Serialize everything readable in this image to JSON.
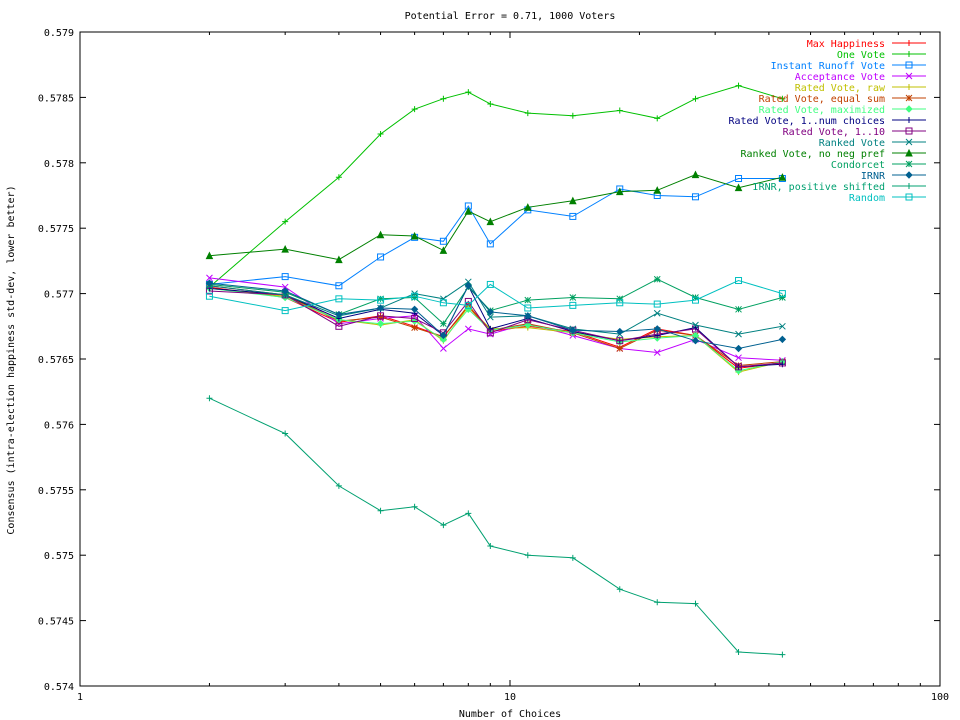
{
  "chart_data": {
    "type": "line",
    "title": "Potential Error = 0.71, 1000 Voters",
    "xlabel": "Number of Choices",
    "ylabel": "Consensus (intra-election happiness std-dev, lower better)",
    "x_scale": "log",
    "xlim": [
      1,
      100
    ],
    "ylim": [
      0.574,
      0.579
    ],
    "x_ticks": [
      {
        "value": 1,
        "label": "1"
      },
      {
        "value": 10,
        "label": "10"
      },
      {
        "value": 100,
        "label": "100"
      }
    ],
    "y_ticks": [
      {
        "value": 0.574,
        "label": "0.574"
      },
      {
        "value": 0.5745,
        "label": "0.5745"
      },
      {
        "value": 0.575,
        "label": "0.575"
      },
      {
        "value": 0.5755,
        "label": "0.5755"
      },
      {
        "value": 0.576,
        "label": "0.576"
      },
      {
        "value": 0.5765,
        "label": "0.5765"
      },
      {
        "value": 0.577,
        "label": "0.577"
      },
      {
        "value": 0.5775,
        "label": "0.5775"
      },
      {
        "value": 0.578,
        "label": "0.578"
      },
      {
        "value": 0.5785,
        "label": "0.5785"
      },
      {
        "value": 0.579,
        "label": "0.579"
      }
    ],
    "grid": false,
    "legend_position": "top-right",
    "x": [
      2,
      3,
      4,
      5,
      6,
      7,
      8,
      9,
      11,
      14,
      18,
      22,
      27,
      34,
      43
    ],
    "series": [
      {
        "name": "Max Happiness",
        "color": "#ff0000",
        "marker": "plus",
        "values": [
          0.57705,
          0.57697,
          0.57678,
          0.57683,
          0.57675,
          0.57667,
          0.5769,
          0.57671,
          0.57675,
          0.57671,
          0.57659,
          0.57673,
          0.57668,
          0.57643,
          0.57647
        ]
      },
      {
        "name": "One Vote",
        "color": "#00c000",
        "marker": "plus",
        "values": [
          0.57705,
          0.57755,
          0.57789,
          0.57822,
          0.57841,
          0.57849,
          0.57854,
          0.57845,
          0.57838,
          0.57836,
          0.5784,
          0.57834,
          0.57849,
          0.57859,
          0.57849
        ]
      },
      {
        "name": "Instant Runoff Vote",
        "color": "#0080ff",
        "marker": "square",
        "values": [
          0.57707,
          0.57713,
          0.57706,
          0.57728,
          0.57743,
          0.5774,
          0.57767,
          0.57738,
          0.57764,
          0.57759,
          0.5778,
          0.57775,
          0.57774,
          0.57788,
          0.57788
        ]
      },
      {
        "name": "Acceptance Vote",
        "color": "#c000ff",
        "marker": "x",
        "values": [
          0.57712,
          0.57705,
          0.57677,
          0.57681,
          0.57683,
          0.57658,
          0.57673,
          0.57669,
          0.57677,
          0.57668,
          0.57658,
          0.57655,
          0.57665,
          0.57651,
          0.57649
        ]
      },
      {
        "name": "Rated Vote, raw",
        "color": "#c0c000",
        "marker": "plus",
        "values": [
          0.57704,
          0.57698,
          0.5768,
          0.57676,
          0.5768,
          0.57664,
          0.5769,
          0.57673,
          0.57674,
          0.5767,
          0.57665,
          0.57667,
          0.57668,
          0.5764,
          0.57648
        ]
      },
      {
        "name": "Rated Vote, equal sum",
        "color": "#c04000",
        "marker": "star",
        "values": [
          0.57706,
          0.57699,
          0.57679,
          0.57682,
          0.57674,
          0.57667,
          0.57691,
          0.57672,
          0.57677,
          0.5767,
          0.57658,
          0.57672,
          0.57668,
          0.57645,
          0.57648
        ]
      },
      {
        "name": "Rated Vote, maximized",
        "color": "#40ff80",
        "marker": "diamond",
        "values": [
          0.57704,
          0.57697,
          0.5768,
          0.57677,
          0.57679,
          0.57665,
          0.57688,
          0.57672,
          0.57676,
          0.5767,
          0.57663,
          0.57666,
          0.57668,
          0.57641,
          0.57648
        ]
      },
      {
        "name": "Rated Vote, 1..num choices",
        "color": "#000080",
        "marker": "plus",
        "values": [
          0.57704,
          0.57699,
          0.57681,
          0.57688,
          0.57685,
          0.57668,
          0.57706,
          0.57673,
          0.57681,
          0.57671,
          0.57664,
          0.57668,
          0.57674,
          0.57644,
          0.57646
        ]
      },
      {
        "name": "Rated Vote, 1..10",
        "color": "#800080",
        "marker": "square",
        "values": [
          0.57702,
          0.57699,
          0.57675,
          0.57683,
          0.57681,
          0.5767,
          0.57694,
          0.5767,
          0.5768,
          0.57672,
          0.57664,
          0.57669,
          0.57673,
          0.57644,
          0.57647
        ]
      },
      {
        "name": "Ranked Vote",
        "color": "#008080",
        "marker": "x",
        "values": [
          0.57706,
          0.57699,
          0.57683,
          0.57689,
          0.577,
          0.57696,
          0.57709,
          0.57682,
          0.57683,
          0.57673,
          0.57669,
          0.57685,
          0.57676,
          0.57669,
          0.57675
        ]
      },
      {
        "name": "Ranked Vote, no neg pref",
        "color": "#008000",
        "marker": "triangle",
        "values": [
          0.57729,
          0.57734,
          0.57726,
          0.57745,
          0.57744,
          0.57733,
          0.57763,
          0.57755,
          0.57766,
          0.57771,
          0.57778,
          0.57779,
          0.57791,
          0.57781,
          0.57789
        ]
      },
      {
        "name": "Condorcet",
        "color": "#00a060",
        "marker": "star",
        "values": [
          0.57707,
          0.57701,
          0.57684,
          0.57696,
          0.57697,
          0.57677,
          0.57705,
          0.57687,
          0.57695,
          0.57697,
          0.57696,
          0.57711,
          0.57697,
          0.57688,
          0.57697
        ]
      },
      {
        "name": "IRNR",
        "color": "#006090",
        "marker": "diamond",
        "values": [
          0.57708,
          0.57702,
          0.57684,
          0.57689,
          0.57688,
          0.57668,
          0.57706,
          0.57686,
          0.57683,
          0.57672,
          0.57671,
          0.57673,
          0.57664,
          0.57658,
          0.57665
        ]
      },
      {
        "name": "IRNR, positive shifted",
        "color": "#00a070",
        "marker": "plus",
        "values": [
          0.5762,
          0.57593,
          0.57553,
          0.57534,
          0.57537,
          0.57523,
          0.57532,
          0.57507,
          0.575,
          0.57498,
          0.57474,
          0.57464,
          0.57463,
          0.57426,
          0.57424
        ]
      },
      {
        "name": "Random",
        "color": "#00c0c0",
        "marker": "square",
        "values": [
          0.57698,
          0.57687,
          0.57696,
          0.57695,
          0.57698,
          0.57693,
          0.57691,
          0.57707,
          0.57689,
          0.57691,
          0.57693,
          0.57692,
          0.57695,
          0.5771,
          0.577
        ]
      }
    ]
  }
}
